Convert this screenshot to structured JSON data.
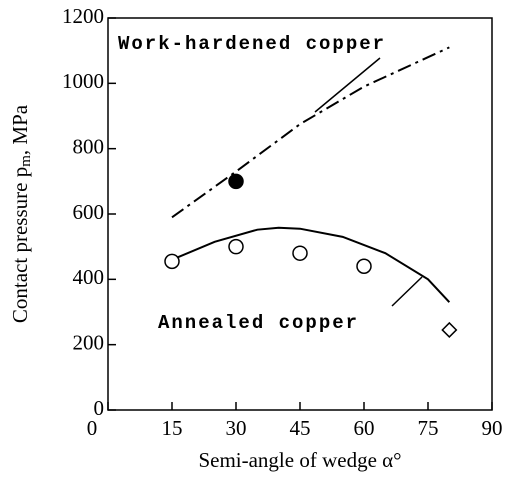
{
  "chart_data": {
    "type": "line",
    "xlabel": "Semi-angle of wedge α°",
    "ylabel_parts": [
      "Contact pressure p",
      "m",
      ", MPa"
    ],
    "xlim": [
      0,
      90
    ],
    "xticks": [
      0,
      15,
      30,
      45,
      60,
      75,
      90
    ],
    "ylim": [
      0,
      1200
    ],
    "yticks": [
      0,
      200,
      400,
      600,
      800,
      1000,
      1200
    ],
    "series": [
      {
        "name": "Work-hardened copper",
        "style": "dashdot",
        "color": "#000",
        "x": [
          15,
          30,
          45,
          60,
          75,
          80
        ],
        "values": [
          590,
          730,
          875,
          990,
          1080,
          1110
        ]
      },
      {
        "name": "Annealed copper",
        "style": "solid",
        "color": "#000",
        "x": [
          15,
          25,
          35,
          40,
          45,
          55,
          65,
          75,
          80
        ],
        "values": [
          460,
          515,
          552,
          558,
          555,
          530,
          480,
          400,
          330
        ]
      },
      {
        "marker": "circle-open",
        "color": "#000",
        "x": [
          15,
          30,
          45,
          60
        ],
        "values": [
          455,
          500,
          480,
          440
        ]
      },
      {
        "marker": "circle-filled",
        "color": "#000",
        "x": [
          30
        ],
        "values": [
          700
        ]
      },
      {
        "marker": "diamond-open",
        "color": "#000",
        "x": [
          80
        ],
        "values": [
          245
        ]
      }
    ]
  }
}
